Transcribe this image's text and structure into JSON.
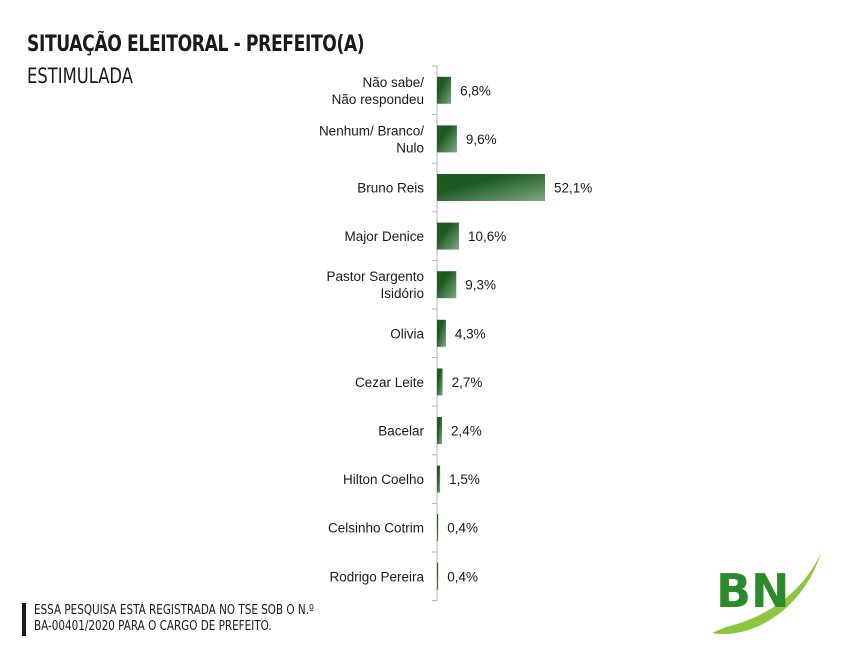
{
  "title": "SITUAÇÃO ELEITORAL - PREFEITO(A)",
  "subtitle": "ESTIMULADA",
  "footnote": {
    "line1": "ESSA PESQUISA ESTÁ REGISTRADA NO TSE SOB O N.º",
    "line2": "BA-00401/2020 PARA O CARGO DE PREFEITO."
  },
  "logo": {
    "text": "BN"
  },
  "colors": {
    "bar_dark": "#1f5a24",
    "bar_light": "#7fa982",
    "axis": "#b5b5b5",
    "logo_green": "#2d8a2a",
    "logo_swoosh": "#8cc63f"
  },
  "chart_data": {
    "type": "bar",
    "orientation": "horizontal",
    "categories": [
      [
        "Não sabe/",
        "Não respondeu"
      ],
      [
        "Nenhum/ Branco/",
        "Nulo"
      ],
      [
        "Bruno Reis"
      ],
      [
        "Major Denice"
      ],
      [
        "Pastor Sargento",
        "Isidório"
      ],
      [
        "Olivia"
      ],
      [
        "Cezar Leite"
      ],
      [
        "Bacelar"
      ],
      [
        "Hilton Coelho"
      ],
      [
        "Celsinho Cotrim"
      ],
      [
        "Rodrigo Pereira"
      ]
    ],
    "values": [
      6.8,
      9.6,
      52.1,
      10.6,
      9.3,
      4.3,
      2.7,
      2.4,
      1.5,
      0.4,
      0.4
    ],
    "value_labels": [
      "6,8%",
      "9,6%",
      "52,1%",
      "10,6%",
      "9,3%",
      "4,3%",
      "2,7%",
      "2,4%",
      "1,5%",
      "0,4%",
      "0,4%"
    ],
    "xlim": [
      0,
      52.1
    ],
    "grid": false,
    "legend": "none"
  }
}
